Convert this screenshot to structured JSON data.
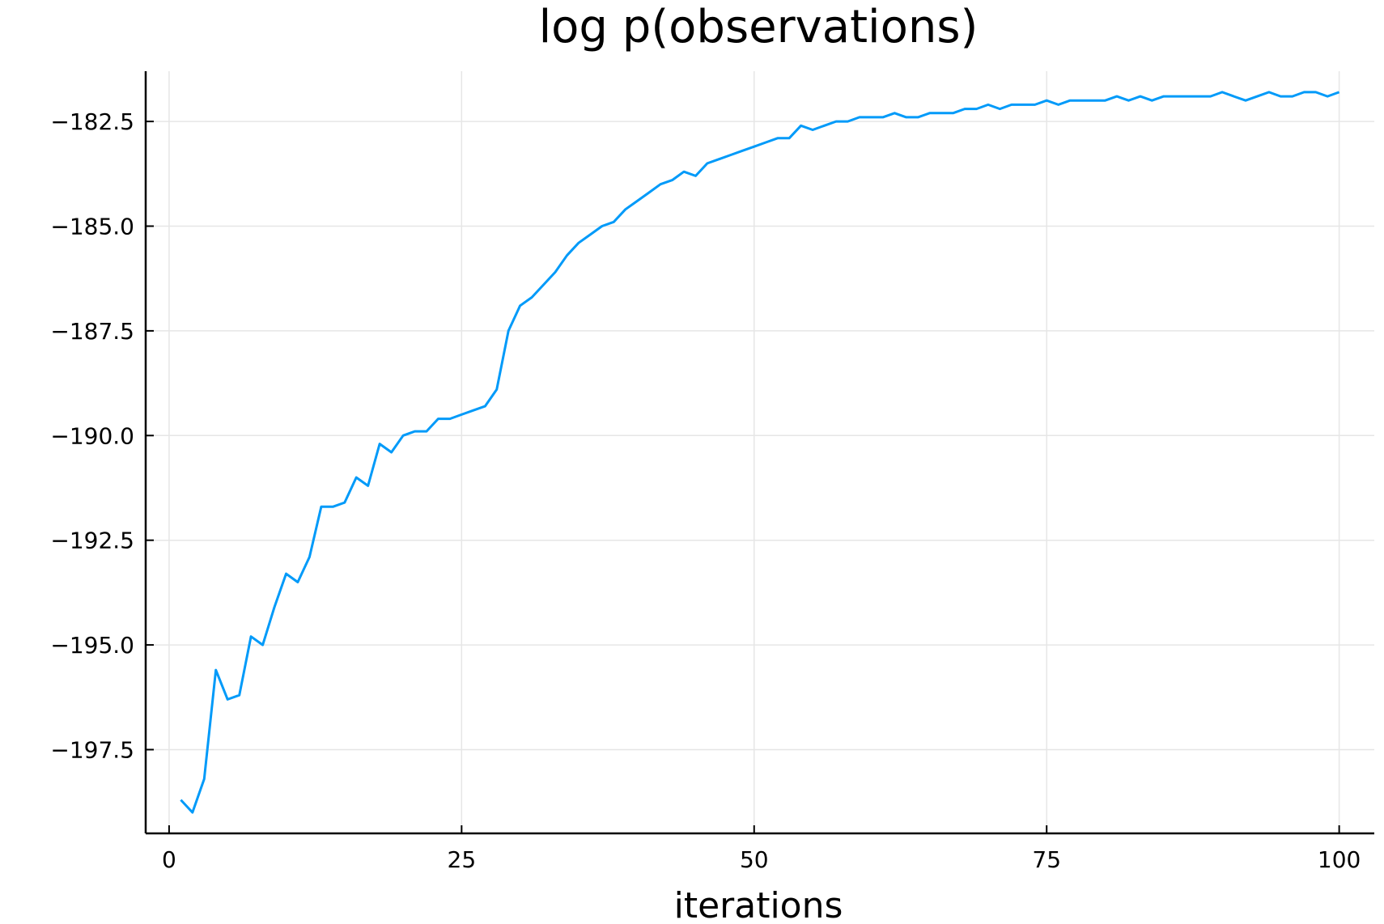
{
  "chart_data": {
    "type": "line",
    "title": "log p(observations)",
    "xlabel": "iterations",
    "ylabel": "",
    "xlim": [
      -2,
      103
    ],
    "ylim": [
      -199.5,
      -181.3
    ],
    "xticks": [
      0,
      25,
      50,
      75,
      100
    ],
    "xtick_labels": [
      "0",
      "25",
      "50",
      "75",
      "100"
    ],
    "yticks": [
      -182.5,
      -185.0,
      -187.5,
      -190.0,
      -192.5,
      -195.0,
      -197.5
    ],
    "ytick_labels": [
      "−182.5",
      "−185.0",
      "−187.5",
      "−190.0",
      "−192.5",
      "−195.0",
      "−197.5"
    ],
    "grid": true,
    "legend": "none",
    "series": [
      {
        "color": "#009af9",
        "x": [
          1,
          2,
          3,
          4,
          5,
          6,
          7,
          8,
          9,
          10,
          11,
          12,
          13,
          14,
          15,
          16,
          17,
          18,
          19,
          20,
          21,
          22,
          23,
          24,
          25,
          26,
          27,
          28,
          29,
          30,
          31,
          32,
          33,
          34,
          35,
          36,
          37,
          38,
          39,
          40,
          41,
          42,
          43,
          44,
          45,
          46,
          47,
          48,
          49,
          50,
          51,
          52,
          53,
          54,
          55,
          56,
          57,
          58,
          59,
          60,
          61,
          62,
          63,
          64,
          65,
          66,
          67,
          68,
          69,
          70,
          71,
          72,
          73,
          74,
          75,
          76,
          77,
          78,
          79,
          80,
          81,
          82,
          83,
          84,
          85,
          86,
          87,
          88,
          89,
          90,
          91,
          92,
          93,
          94,
          95,
          96,
          97,
          98,
          99,
          100
        ],
        "y": [
          -198.7,
          -199.0,
          -198.2,
          -195.6,
          -196.3,
          -196.2,
          -194.8,
          -195.0,
          -194.1,
          -193.3,
          -193.5,
          -192.9,
          -191.7,
          -191.7,
          -191.6,
          -191.0,
          -191.2,
          -190.2,
          -190.4,
          -190.0,
          -189.9,
          -189.9,
          -189.6,
          -189.6,
          -189.5,
          -189.4,
          -189.3,
          -188.9,
          -187.5,
          -186.9,
          -186.7,
          -186.4,
          -186.1,
          -185.7,
          -185.4,
          -185.2,
          -185.0,
          -184.9,
          -184.6,
          -184.4,
          -184.2,
          -184.0,
          -183.9,
          -183.7,
          -183.8,
          -183.5,
          -183.4,
          -183.3,
          -183.2,
          -183.1,
          -183.0,
          -182.9,
          -182.9,
          -182.6,
          -182.7,
          -182.6,
          -182.5,
          -182.5,
          -182.4,
          -182.4,
          -182.4,
          -182.3,
          -182.4,
          -182.4,
          -182.3,
          -182.3,
          -182.3,
          -182.2,
          -182.2,
          -182.1,
          -182.2,
          -182.1,
          -182.1,
          -182.1,
          -182.0,
          -182.1,
          -182.0,
          -182.0,
          -182.0,
          -182.0,
          -181.9,
          -182.0,
          -181.9,
          -182.0,
          -181.9,
          -181.9,
          -181.9,
          -181.9,
          -181.9,
          -181.8,
          -181.9,
          -182.0,
          -181.9,
          -181.8,
          -181.9,
          -181.9,
          -181.8,
          -181.8,
          -181.9,
          -181.8
        ]
      }
    ]
  }
}
